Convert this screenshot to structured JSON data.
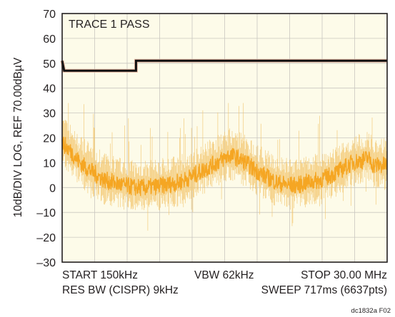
{
  "chart_data": {
    "type": "line",
    "title": "TRACE 1 PASS",
    "ylabel": "10dB/DIV LOG, REF 70.00dBµV",
    "xlabel": "",
    "ylim": [
      -30,
      70
    ],
    "yticks": [
      "70",
      "60",
      "50",
      "40",
      "30",
      "20",
      "10",
      "0",
      "–10",
      "–20",
      "–30"
    ],
    "grid": true,
    "x_scale": "log",
    "xlim_mhz": [
      0.15,
      30.0
    ],
    "series": [
      {
        "role": "limit",
        "color": "#111111",
        "points_mhz_dbuv": [
          [
            0.15,
            51
          ],
          [
            0.155,
            47
          ],
          [
            0.5,
            47
          ],
          [
            0.5,
            51
          ],
          [
            30.0,
            51
          ]
        ]
      },
      {
        "role": "measured",
        "color": "#f5a623",
        "points_mhz_dbuv": [
          [
            0.15,
            18
          ],
          [
            0.17,
            15
          ],
          [
            0.2,
            10
          ],
          [
            0.25,
            6
          ],
          [
            0.3,
            3
          ],
          [
            0.4,
            1
          ],
          [
            0.5,
            0
          ],
          [
            0.6,
            0
          ],
          [
            0.8,
            1
          ],
          [
            1.0,
            2
          ],
          [
            1.3,
            5
          ],
          [
            1.6,
            8
          ],
          [
            2.0,
            11
          ],
          [
            2.3,
            13
          ],
          [
            2.6,
            12
          ],
          [
            3.0,
            10
          ],
          [
            3.5,
            7
          ],
          [
            4.0,
            5
          ],
          [
            5.0,
            2
          ],
          [
            6.0,
            1
          ],
          [
            7.0,
            1
          ],
          [
            8.0,
            2
          ],
          [
            10.0,
            3
          ],
          [
            12.0,
            5
          ],
          [
            14.0,
            7
          ],
          [
            17.0,
            10
          ],
          [
            20.0,
            11
          ],
          [
            22.0,
            12
          ],
          [
            24.0,
            9
          ],
          [
            27.0,
            9
          ],
          [
            30.0,
            9
          ]
        ]
      }
    ]
  },
  "annotations": {
    "start": "START 150kHz",
    "vbw": "VBW 62kHz",
    "stop": "STOP 30.00 MHz",
    "res_bw": "RES BW (CISPR) 9kHz",
    "sweep": "SWEEP 717ms (6637pts)"
  },
  "figure_code": "dc1832a F02"
}
